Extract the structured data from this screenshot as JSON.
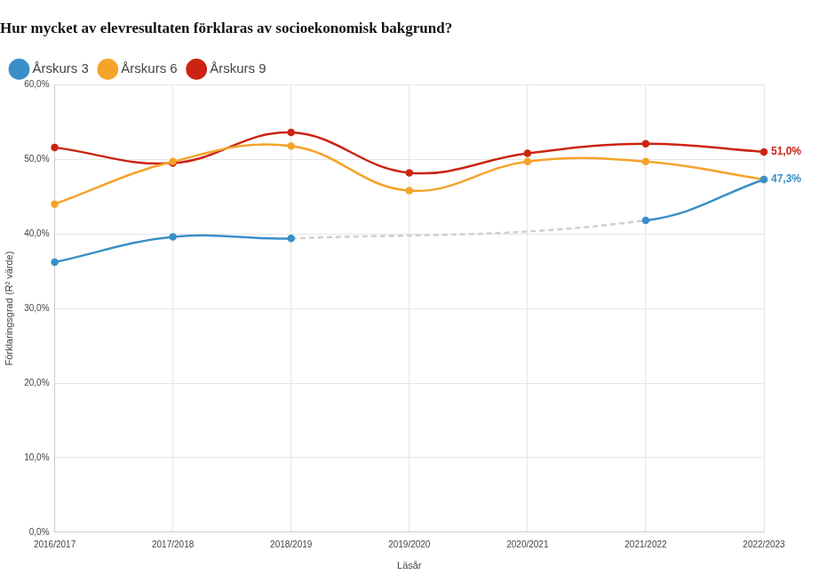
{
  "chart_data": {
    "type": "line",
    "title": "Hur mycket av elevresultaten förklaras av socioekonomisk bakgrund?",
    "x_label": "Läsår",
    "y_label": "Förklaringsgrad (R² värde)",
    "categories": [
      "2016/2017",
      "2017/2018",
      "2018/2019",
      "2019/2020",
      "2020/2021",
      "2021/2022",
      "2022/2023"
    ],
    "series": [
      {
        "name": "Årskurs 3",
        "color": "#3a8fc7",
        "values": [
          36.2,
          39.6,
          39.4,
          null,
          null,
          41.8,
          47.3
        ],
        "value_labels": [
          null,
          null,
          null,
          null,
          null,
          null,
          "47,3%"
        ]
      },
      {
        "name": "Årskurs 6",
        "color": "#f5a32a",
        "values": [
          44.0,
          49.7,
          51.8,
          45.8,
          49.7,
          49.7,
          47.3
        ]
      },
      {
        "name": "Årskurs 9",
        "color": "#cc2414",
        "values": [
          51.6,
          49.5,
          53.6,
          48.2,
          50.8,
          52.1,
          51.0
        ],
        "value_labels": [
          null,
          null,
          null,
          null,
          null,
          null,
          "51,0%"
        ]
      }
    ],
    "ylim": [
      0,
      60
    ],
    "yticks": [
      {
        "value": 0,
        "label": "0,0%"
      },
      {
        "value": 10,
        "label": "10,0%"
      },
      {
        "value": 20,
        "label": "20,0%"
      },
      {
        "value": 30,
        "label": "30,0%"
      },
      {
        "value": 40,
        "label": "40,0%"
      },
      {
        "value": 50,
        "label": "50,0%"
      },
      {
        "value": 60,
        "label": "60,0%"
      }
    ],
    "grid": true,
    "legend": "top-left",
    "marker": "circle"
  }
}
